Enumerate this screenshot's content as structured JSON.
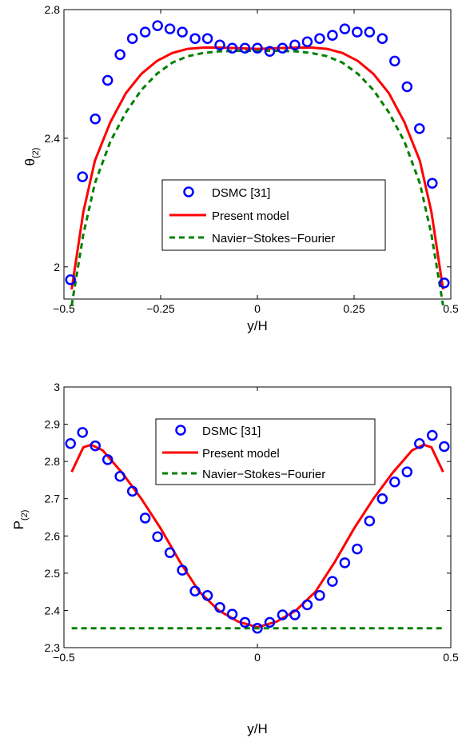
{
  "chart_data": [
    {
      "type": "line",
      "xlabel": "y/H",
      "ylabel": "θ",
      "ylabel_sub": "(2)",
      "xlim": [
        -0.5,
        0.5
      ],
      "ylim": [
        1.9,
        2.8
      ],
      "xticks": [
        -0.5,
        -0.25,
        0,
        0.25,
        0.5
      ],
      "xtick_labels": [
        "−0.5",
        "−0.25",
        "0",
        "0.25",
        "0.5"
      ],
      "yticks": [
        2.0,
        2.4,
        2.8
      ],
      "ytick_labels": [
        "2",
        "2.4",
        "2.8"
      ],
      "grid": false,
      "legend_position": "center",
      "series": [
        {
          "name": "DSMC [31]",
          "style": "markers",
          "color": "#0000ff",
          "x": [
            -0.483,
            -0.452,
            -0.419,
            -0.387,
            -0.355,
            -0.323,
            -0.29,
            -0.258,
            -0.226,
            -0.194,
            -0.161,
            -0.129,
            -0.097,
            -0.065,
            -0.032,
            0.0,
            0.032,
            0.065,
            0.097,
            0.129,
            0.161,
            0.194,
            0.226,
            0.258,
            0.29,
            0.323,
            0.355,
            0.387,
            0.419,
            0.452,
            0.483
          ],
          "y": [
            1.96,
            2.28,
            2.46,
            2.58,
            2.66,
            2.71,
            2.73,
            2.75,
            2.74,
            2.73,
            2.71,
            2.71,
            2.69,
            2.68,
            2.68,
            2.68,
            2.67,
            2.68,
            2.69,
            2.7,
            2.71,
            2.72,
            2.74,
            2.73,
            2.73,
            2.71,
            2.64,
            2.56,
            2.43,
            2.26,
            1.95
          ]
        },
        {
          "name": "Present model",
          "style": "solid",
          "color": "#ff0000",
          "x": [
            -0.48,
            -0.45,
            -0.42,
            -0.38,
            -0.34,
            -0.3,
            -0.26,
            -0.22,
            -0.18,
            -0.14,
            -0.1,
            -0.05,
            0.0,
            0.05,
            0.1,
            0.14,
            0.18,
            0.22,
            0.26,
            0.3,
            0.34,
            0.38,
            0.42,
            0.45,
            0.48
          ],
          "y": [
            1.93,
            2.17,
            2.33,
            2.45,
            2.54,
            2.6,
            2.64,
            2.665,
            2.678,
            2.682,
            2.682,
            2.68,
            2.678,
            2.68,
            2.682,
            2.682,
            2.678,
            2.665,
            2.64,
            2.6,
            2.54,
            2.45,
            2.33,
            2.17,
            1.93
          ]
        },
        {
          "name": "Navier−Stokes−Fourier",
          "style": "dashed",
          "color": "#008000",
          "x": [
            -0.48,
            -0.45,
            -0.42,
            -0.38,
            -0.34,
            -0.3,
            -0.26,
            -0.22,
            -0.18,
            -0.14,
            -0.1,
            -0.05,
            0.0,
            0.05,
            0.1,
            0.14,
            0.18,
            0.22,
            0.26,
            0.3,
            0.34,
            0.38,
            0.42,
            0.45,
            0.48
          ],
          "y": [
            1.88,
            2.1,
            2.26,
            2.39,
            2.48,
            2.55,
            2.6,
            2.635,
            2.655,
            2.665,
            2.67,
            2.672,
            2.672,
            2.672,
            2.67,
            2.665,
            2.655,
            2.635,
            2.6,
            2.55,
            2.48,
            2.39,
            2.26,
            2.1,
            1.88
          ]
        }
      ]
    },
    {
      "type": "line",
      "xlabel": "y/H",
      "ylabel": "P",
      "ylabel_sub": "(2)",
      "xlim": [
        -0.5,
        0.5
      ],
      "ylim": [
        2.3,
        3.0
      ],
      "xticks": [
        -0.5,
        0,
        0.5
      ],
      "xtick_labels": [
        "−0.5",
        "0",
        "0.5"
      ],
      "yticks": [
        2.3,
        2.4,
        2.5,
        2.6,
        2.7,
        2.8,
        2.9,
        3.0
      ],
      "ytick_labels": [
        "2.3",
        "2.4",
        "2.5",
        "2.6",
        "2.7",
        "2.8",
        "2.9",
        "3"
      ],
      "grid": false,
      "legend_position": "top-right",
      "series": [
        {
          "name": "DSMC [31]",
          "style": "markers",
          "color": "#0000ff",
          "x": [
            -0.483,
            -0.452,
            -0.419,
            -0.387,
            -0.355,
            -0.323,
            -0.29,
            -0.258,
            -0.226,
            -0.194,
            -0.161,
            -0.129,
            -0.097,
            -0.065,
            -0.032,
            0.0,
            0.032,
            0.065,
            0.097,
            0.129,
            0.161,
            0.194,
            0.226,
            0.258,
            0.29,
            0.323,
            0.355,
            0.387,
            0.419,
            0.452,
            0.483
          ],
          "y": [
            2.848,
            2.878,
            2.842,
            2.805,
            2.76,
            2.72,
            2.648,
            2.598,
            2.555,
            2.508,
            2.452,
            2.44,
            2.408,
            2.39,
            2.368,
            2.352,
            2.368,
            2.388,
            2.388,
            2.415,
            2.44,
            2.478,
            2.528,
            2.565,
            2.64,
            2.7,
            2.745,
            2.772,
            2.848,
            2.87,
            2.84
          ]
        },
        {
          "name": "Present model",
          "style": "solid",
          "color": "#ff0000",
          "x": [
            -0.48,
            -0.45,
            -0.43,
            -0.4,
            -0.35,
            -0.3,
            -0.25,
            -0.2,
            -0.15,
            -0.1,
            -0.05,
            0.0,
            0.05,
            0.1,
            0.15,
            0.2,
            0.25,
            0.3,
            0.35,
            0.4,
            0.43,
            0.45,
            0.48
          ],
          "y": [
            2.772,
            2.838,
            2.845,
            2.83,
            2.77,
            2.7,
            2.62,
            2.53,
            2.45,
            2.4,
            2.37,
            2.355,
            2.37,
            2.4,
            2.45,
            2.53,
            2.62,
            2.7,
            2.77,
            2.83,
            2.845,
            2.838,
            2.772
          ]
        },
        {
          "name": "Navier−Stokes−Fourier",
          "style": "dashed",
          "color": "#008000",
          "x": [
            -0.48,
            0.48
          ],
          "y": [
            2.352,
            2.352
          ]
        }
      ]
    }
  ]
}
